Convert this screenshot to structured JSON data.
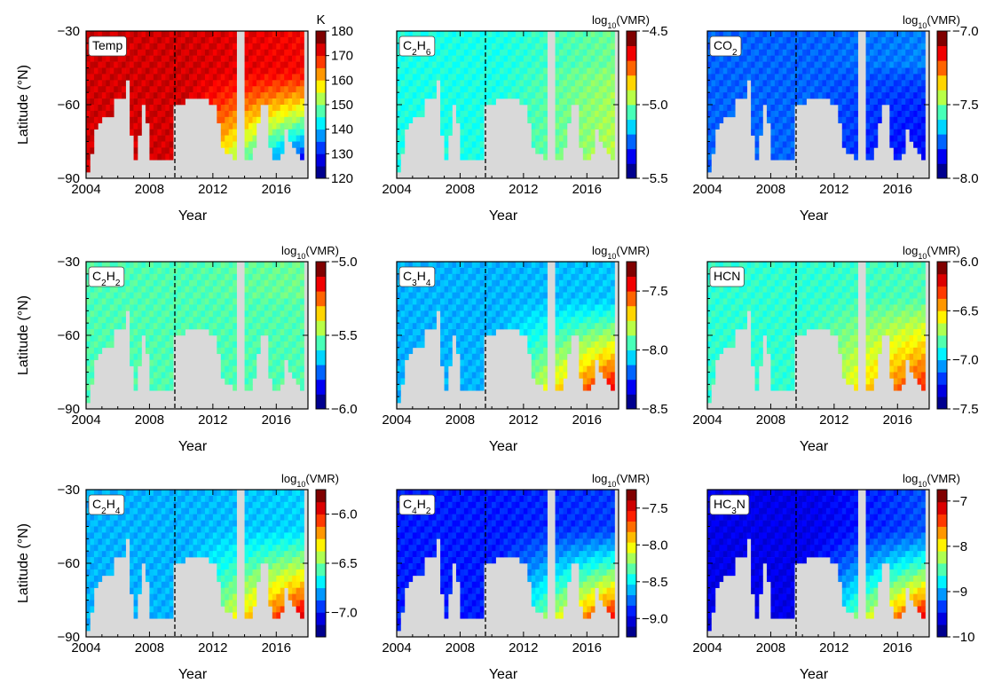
{
  "figure": {
    "x_title": "Year",
    "y_title": "Latitude (°N)",
    "x_ticks": [
      "2004",
      "2008",
      "2012",
      "2016"
    ],
    "x_tick_values": [
      2004,
      2008,
      2012,
      2016
    ],
    "x_range": [
      2004,
      2018
    ],
    "y_ticks": [
      "−30",
      "−60",
      "−90"
    ],
    "y_tick_values": [
      -30,
      -60,
      -90
    ],
    "y_range": [
      -90,
      -30
    ],
    "equinox_line_year": 2009.6,
    "no_data_color": "#d9d9d9",
    "colormap": [
      "#00008f",
      "#0000ff",
      "#0080ff",
      "#00ffff",
      "#80ff80",
      "#ffff00",
      "#ff8000",
      "#ff0000",
      "#800000"
    ]
  },
  "chart_data": [
    {
      "type": "heatmap",
      "label": "Temp",
      "label_html": "Temp",
      "unit": "K",
      "colorbar_range": [
        120,
        180
      ],
      "colorbar_ticks": [
        "180",
        "170",
        "160",
        "150",
        "140",
        "130",
        "120"
      ],
      "colorbar_tick_values": [
        180,
        170,
        160,
        150,
        140,
        130,
        120
      ],
      "trend": "warm (~170–176 K) throughout early mission; high southern latitudes cool to ~125 K after 2013"
    },
    {
      "type": "heatmap",
      "label": "C2H6",
      "label_html": "C<tspan baseline-shift='sub' font-size='10'>2</tspan>H<tspan baseline-shift='sub' font-size='10'>6</tspan>",
      "unit": "log10(VMR)",
      "colorbar_range": [
        -5.5,
        -4.5
      ],
      "colorbar_ticks": [
        "−4.5",
        "−5.0",
        "−5.5"
      ],
      "colorbar_tick_values": [
        -4.5,
        -5.0,
        -5.5
      ],
      "trend": "near −5.1 everywhere; slight increase toward 2017"
    },
    {
      "type": "heatmap",
      "label": "CO2",
      "label_html": "CO<tspan baseline-shift='sub' font-size='10'>2</tspan>",
      "unit": "log10(VMR)",
      "colorbar_range": [
        -8.0,
        -7.0
      ],
      "colorbar_ticks": [
        "−7.0",
        "−7.5",
        "−8.0"
      ],
      "colorbar_tick_values": [
        -7.0,
        -7.5,
        -8.0
      ],
      "trend": "around −7.7, decreasing at high latitudes late in mission"
    },
    {
      "type": "heatmap",
      "label": "C2H2",
      "label_html": "C<tspan baseline-shift='sub' font-size='10'>2</tspan>H<tspan baseline-shift='sub' font-size='10'>2</tspan>",
      "unit": "log10(VMR)",
      "colorbar_range": [
        -6.0,
        -5.0
      ],
      "colorbar_ticks": [
        "−5.0",
        "−5.5",
        "−6.0"
      ],
      "colorbar_tick_values": [
        -5.0,
        -5.5,
        -6.0
      ],
      "trend": "near −5.4 throughout"
    },
    {
      "type": "heatmap",
      "label": "C3H4",
      "label_html": "C<tspan baseline-shift='sub' font-size='10'>3</tspan>H<tspan baseline-shift='sub' font-size='10'>4</tspan>",
      "unit": "log10(VMR)",
      "colorbar_range": [
        -8.5,
        -7.25
      ],
      "colorbar_ticks": [
        "−7.5",
        "−8.0",
        "−8.5"
      ],
      "colorbar_tick_values": [
        -7.5,
        -8.0,
        -8.5
      ],
      "trend": "~−8.0 early; enhancement to ~−7.4 at high southern latitudes after 2012"
    },
    {
      "type": "heatmap",
      "label": "HCN",
      "label_html": "HCN",
      "unit": "log10(VMR)",
      "colorbar_range": [
        -7.5,
        -6.0
      ],
      "colorbar_ticks": [
        "−6.0",
        "−6.5",
        "−7.0",
        "−7.5"
      ],
      "colorbar_tick_values": [
        -6.0,
        -6.5,
        -7.0,
        -7.5
      ],
      "trend": "~−7.0 early; strong enhancement to ~−6.3 at high latitudes after 2012"
    },
    {
      "type": "heatmap",
      "label": "C2H4",
      "label_html": "C<tspan baseline-shift='sub' font-size='10'>2</tspan>H<tspan baseline-shift='sub' font-size='10'>4</tspan>",
      "unit": "log10(VMR)",
      "colorbar_range": [
        -7.25,
        -5.75
      ],
      "colorbar_ticks": [
        "−6.0",
        "−6.5",
        "−7.0"
      ],
      "colorbar_tick_values": [
        -6.0,
        -6.5,
        -7.0
      ],
      "trend": "~−6.9 early; enhancement to ~−5.8 at high latitudes after 2012"
    },
    {
      "type": "heatmap",
      "label": "C4H2",
      "label_html": "C<tspan baseline-shift='sub' font-size='10'>4</tspan>H<tspan baseline-shift='sub' font-size='10'>2</tspan>",
      "unit": "log10(VMR)",
      "colorbar_range": [
        -9.25,
        -7.25
      ],
      "colorbar_ticks": [
        "−7.5",
        "−8.0",
        "−8.5",
        "−9.0"
      ],
      "colorbar_tick_values": [
        -7.5,
        -8.0,
        -8.5,
        -9.0
      ],
      "trend": "~−9.0 early; enhancement to ~−7.5 at high latitudes after 2012"
    },
    {
      "type": "heatmap",
      "label": "HC3N",
      "label_html": "HC<tspan baseline-shift='sub' font-size='10'>3</tspan>N",
      "unit": "log10(VMR)",
      "colorbar_range": [
        -10.0,
        -6.75
      ],
      "colorbar_ticks": [
        "−7",
        "−8",
        "−9",
        "−10"
      ],
      "colorbar_tick_values": [
        -7,
        -8,
        -9,
        -10
      ],
      "trend": "~−9.5 early; strong enhancement to ~−7 at high latitudes after 2012"
    }
  ]
}
